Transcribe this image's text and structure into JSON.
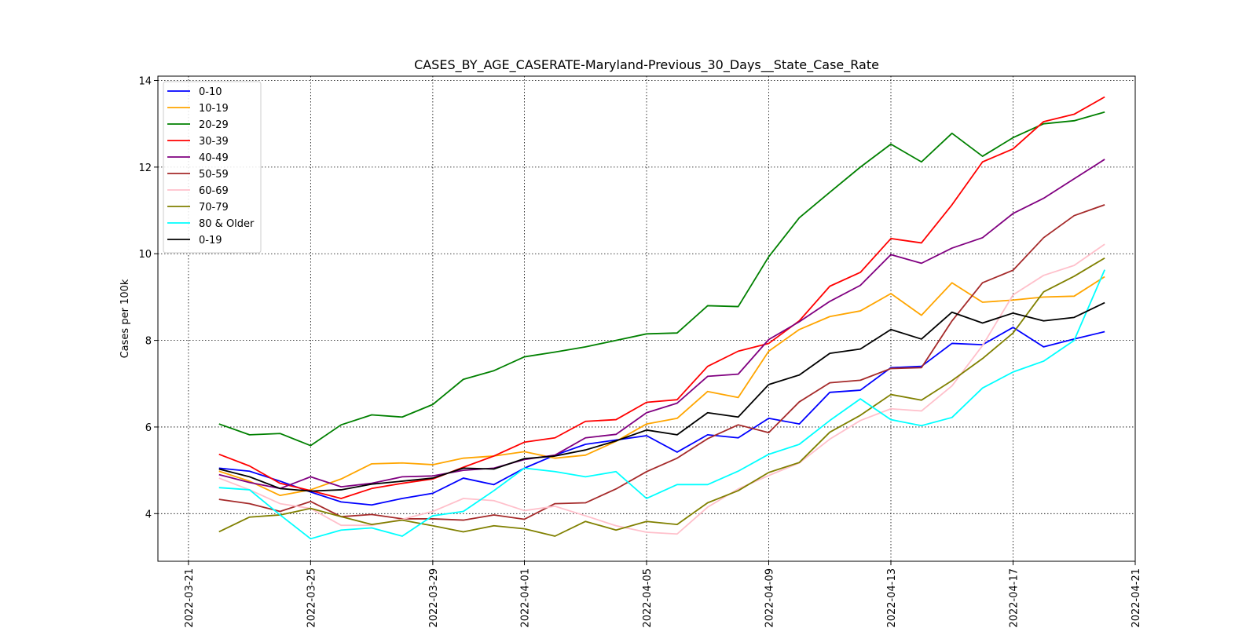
{
  "chart_data": {
    "type": "line",
    "title": "CASES_BY_AGE_CASERATE-Maryland-Previous_30_Days__State_Case_Rate",
    "ylabel": "Cases per 100k",
    "xlabel": "",
    "x_start": "2022-03-22",
    "x_end": "2022-04-20",
    "x": [
      "2022-03-22",
      "2022-03-23",
      "2022-03-24",
      "2022-03-25",
      "2022-03-26",
      "2022-03-27",
      "2022-03-28",
      "2022-03-29",
      "2022-03-30",
      "2022-03-31",
      "2022-04-01",
      "2022-04-02",
      "2022-04-03",
      "2022-04-04",
      "2022-04-05",
      "2022-04-06",
      "2022-04-07",
      "2022-04-08",
      "2022-04-09",
      "2022-04-10",
      "2022-04-11",
      "2022-04-12",
      "2022-04-13",
      "2022-04-14",
      "2022-04-15",
      "2022-04-16",
      "2022-04-17",
      "2022-04-18",
      "2022-04-19",
      "2022-04-20"
    ],
    "xlim": [
      "2022-03-20",
      "2022-04-21"
    ],
    "x_ticks": [
      "2022-03-21",
      "2022-03-25",
      "2022-03-29",
      "2022-04-01",
      "2022-04-05",
      "2022-04-09",
      "2022-04-13",
      "2022-04-17",
      "2022-04-21"
    ],
    "ylim": [
      2.9,
      14.1
    ],
    "y_ticks": [
      4,
      6,
      8,
      10,
      12,
      14
    ],
    "grid": true,
    "legend_position": "top-left",
    "series": [
      {
        "name": "0-10",
        "color": "#0000ff",
        "values": [
          5.05,
          4.98,
          4.75,
          4.5,
          4.27,
          4.2,
          4.35,
          4.47,
          4.82,
          4.67,
          5.05,
          5.35,
          5.6,
          5.7,
          5.8,
          5.42,
          5.82,
          5.75,
          6.2,
          6.07,
          6.8,
          6.85,
          7.37,
          7.4,
          7.93,
          7.9,
          8.3,
          7.85,
          8.03,
          8.2
        ]
      },
      {
        "name": "10-19",
        "color": "#ffa500",
        "values": [
          4.98,
          4.75,
          4.42,
          4.55,
          4.8,
          5.15,
          5.17,
          5.13,
          5.28,
          5.33,
          5.43,
          5.28,
          5.35,
          5.67,
          6.07,
          6.2,
          6.82,
          6.68,
          7.75,
          8.25,
          8.55,
          8.68,
          9.08,
          8.58,
          9.33,
          8.88,
          8.93,
          9.0,
          9.02,
          9.47
        ]
      },
      {
        "name": "20-29",
        "color": "#008000",
        "values": [
          6.07,
          5.82,
          5.85,
          5.57,
          6.05,
          6.28,
          6.23,
          6.52,
          7.1,
          7.3,
          7.62,
          7.73,
          7.85,
          8.0,
          8.15,
          8.17,
          8.8,
          8.78,
          9.93,
          10.83,
          11.42,
          12.0,
          12.53,
          12.12,
          12.78,
          12.25,
          12.68,
          13.0,
          13.07,
          13.27
        ]
      },
      {
        "name": "30-39",
        "color": "#ff0000",
        "values": [
          5.37,
          5.1,
          4.7,
          4.53,
          4.35,
          4.58,
          4.7,
          4.8,
          5.07,
          5.33,
          5.65,
          5.75,
          6.13,
          6.17,
          6.57,
          6.63,
          7.4,
          7.75,
          7.93,
          8.45,
          9.25,
          9.57,
          10.35,
          10.25,
          11.13,
          12.12,
          12.42,
          13.05,
          13.22,
          13.62
        ]
      },
      {
        "name": "40-49",
        "color": "#800080",
        "values": [
          4.9,
          4.72,
          4.58,
          4.85,
          4.62,
          4.7,
          4.85,
          4.87,
          5.0,
          5.05,
          5.25,
          5.35,
          5.75,
          5.83,
          6.33,
          6.55,
          7.17,
          7.22,
          8.02,
          8.43,
          8.9,
          9.27,
          9.98,
          9.78,
          10.13,
          10.37,
          10.93,
          11.28,
          11.73,
          12.18
        ]
      },
      {
        "name": "50-59",
        "color": "#a52a2a",
        "values": [
          4.33,
          4.23,
          4.05,
          4.28,
          3.93,
          3.98,
          3.88,
          3.88,
          3.85,
          3.97,
          3.87,
          4.23,
          4.25,
          4.57,
          4.97,
          5.28,
          5.73,
          6.05,
          5.87,
          6.58,
          7.02,
          7.08,
          7.35,
          7.37,
          8.45,
          9.33,
          9.62,
          10.37,
          10.88,
          11.13
        ]
      },
      {
        "name": "60-69",
        "color": "#ffc0cb",
        "values": [
          4.82,
          4.55,
          4.23,
          4.12,
          3.73,
          3.73,
          3.87,
          4.05,
          4.35,
          4.3,
          4.07,
          4.17,
          3.95,
          3.72,
          3.57,
          3.53,
          4.15,
          4.57,
          4.88,
          5.17,
          5.72,
          6.15,
          6.42,
          6.37,
          6.95,
          7.88,
          9.05,
          9.5,
          9.73,
          10.22
        ]
      },
      {
        "name": "70-79",
        "color": "#808000",
        "values": [
          3.58,
          3.92,
          3.97,
          4.12,
          3.93,
          3.75,
          3.85,
          3.72,
          3.58,
          3.72,
          3.65,
          3.48,
          3.82,
          3.62,
          3.82,
          3.75,
          4.25,
          4.53,
          4.95,
          5.18,
          5.88,
          6.27,
          6.75,
          6.62,
          7.07,
          7.58,
          8.17,
          9.12,
          9.48,
          9.9
        ]
      },
      {
        "name": "80 & Older",
        "color": "#00ffff",
        "values": [
          4.6,
          4.55,
          3.97,
          3.42,
          3.62,
          3.67,
          3.48,
          3.95,
          4.05,
          4.53,
          5.05,
          4.97,
          4.85,
          4.97,
          4.35,
          4.67,
          4.67,
          4.98,
          5.37,
          5.6,
          6.15,
          6.65,
          6.17,
          6.03,
          6.22,
          6.9,
          7.27,
          7.52,
          8.0,
          9.63
        ]
      },
      {
        "name": "0-19",
        "color": "#000000",
        "values": [
          5.03,
          4.85,
          4.58,
          4.52,
          4.55,
          4.68,
          4.75,
          4.82,
          5.05,
          5.03,
          5.27,
          5.33,
          5.47,
          5.68,
          5.93,
          5.82,
          6.33,
          6.23,
          6.98,
          7.2,
          7.7,
          7.8,
          8.25,
          8.03,
          8.65,
          8.4,
          8.63,
          8.45,
          8.53,
          8.87
        ]
      }
    ]
  }
}
